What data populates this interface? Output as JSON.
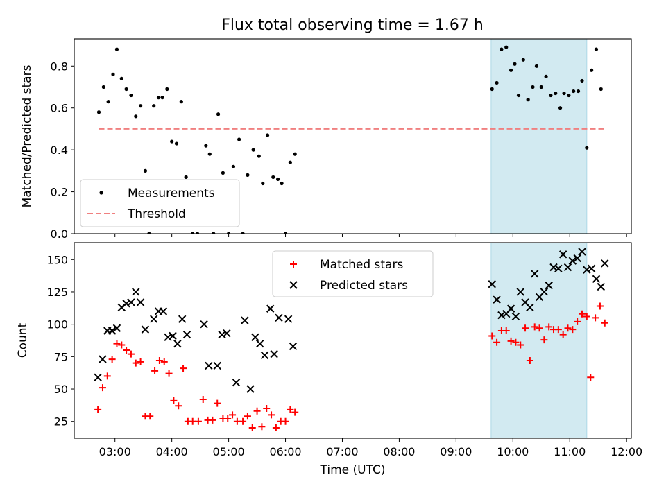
{
  "title": "Flux total observing time = 1.67 h",
  "colors": {
    "measurement": "#000000",
    "threshold": "#f08080",
    "matched": "#ff0000",
    "predicted": "#000000",
    "highlight": "#add8e6"
  },
  "chart_data": [
    {
      "type": "scatter",
      "name": "ratio-panel",
      "title": "Flux total observing time = 1.67 h",
      "xlabel": "",
      "ylabel": "Matched/Predicted stars",
      "xlim": [
        "02:17",
        "12:05"
      ],
      "ylim": [
        0,
        0.93
      ],
      "yticks": [
        0.0,
        0.2,
        0.4,
        0.6,
        0.8
      ],
      "ytick_labels": [
        "0.0",
        "0.2",
        "0.4",
        "0.6",
        "0.8"
      ],
      "highlight_span": [
        "09:37",
        "11:18"
      ],
      "legend": {
        "position": "lower-left",
        "entries": [
          "Measurements",
          "Threshold"
        ]
      },
      "threshold": {
        "name": "Threshold",
        "x": [
          "02:43",
          "11:38"
        ],
        "y": 0.5
      },
      "series": [
        {
          "name": "Measurements",
          "marker": "dot",
          "points": [
            [
              "02:43",
              0.58
            ],
            [
              "02:48",
              0.7
            ],
            [
              "02:53",
              0.63
            ],
            [
              "02:58",
              0.76
            ],
            [
              "03:02",
              0.88
            ],
            [
              "03:07",
              0.74
            ],
            [
              "03:12",
              0.69
            ],
            [
              "03:17",
              0.66
            ],
            [
              "03:22",
              0.56
            ],
            [
              "03:27",
              0.61
            ],
            [
              "03:32",
              0.3
            ],
            [
              "03:36",
              0.0
            ],
            [
              "03:41",
              0.61
            ],
            [
              "03:46",
              0.65
            ],
            [
              "03:50",
              0.65
            ],
            [
              "03:55",
              0.69
            ],
            [
              "04:00",
              0.44
            ],
            [
              "04:05",
              0.43
            ],
            [
              "04:10",
              0.63
            ],
            [
              "04:15",
              0.27
            ],
            [
              "04:22",
              0.0
            ],
            [
              "04:27",
              0.0
            ],
            [
              "04:36",
              0.42
            ],
            [
              "04:40",
              0.38
            ],
            [
              "04:44",
              0.0
            ],
            [
              "04:49",
              0.57
            ],
            [
              "04:54",
              0.29
            ],
            [
              "05:00",
              0.0
            ],
            [
              "05:05",
              0.32
            ],
            [
              "05:11",
              0.45
            ],
            [
              "05:15",
              0.0
            ],
            [
              "05:20",
              0.28
            ],
            [
              "05:26",
              0.4
            ],
            [
              "05:32",
              0.37
            ],
            [
              "05:36",
              0.24
            ],
            [
              "05:41",
              0.47
            ],
            [
              "05:47",
              0.27
            ],
            [
              "05:52",
              0.26
            ],
            [
              "05:56",
              0.24
            ],
            [
              "06:00",
              0.0
            ],
            [
              "06:05",
              0.34
            ],
            [
              "06:10",
              0.38
            ],
            [
              "09:38",
              0.69
            ],
            [
              "09:43",
              0.72
            ],
            [
              "09:48",
              0.88
            ],
            [
              "09:53",
              0.89
            ],
            [
              "09:58",
              0.78
            ],
            [
              "10:02",
              0.81
            ],
            [
              "10:06",
              0.66
            ],
            [
              "10:11",
              0.83
            ],
            [
              "10:16",
              0.64
            ],
            [
              "10:21",
              0.7
            ],
            [
              "10:25",
              0.8
            ],
            [
              "10:30",
              0.7
            ],
            [
              "10:35",
              0.75
            ],
            [
              "10:40",
              0.66
            ],
            [
              "10:45",
              0.67
            ],
            [
              "10:50",
              0.6
            ],
            [
              "10:54",
              0.67
            ],
            [
              "10:59",
              0.66
            ],
            [
              "11:04",
              0.68
            ],
            [
              "11:09",
              0.68
            ],
            [
              "11:13",
              0.73
            ],
            [
              "11:18",
              0.41
            ],
            [
              "11:23",
              0.78
            ],
            [
              "11:28",
              0.88
            ],
            [
              "11:33",
              0.69
            ]
          ]
        }
      ]
    },
    {
      "type": "scatter",
      "name": "count-panel",
      "xlabel": "Time (UTC)",
      "ylabel": "Count",
      "xlim": [
        "02:17",
        "12:05"
      ],
      "ylim": [
        12,
        163
      ],
      "yticks": [
        25,
        50,
        75,
        100,
        125,
        150
      ],
      "ytick_labels": [
        "25",
        "50",
        "75",
        "100",
        "125",
        "150"
      ],
      "xticks": [
        "03:00",
        "04:00",
        "05:00",
        "06:00",
        "07:00",
        "08:00",
        "09:00",
        "10:00",
        "11:00",
        "12:00"
      ],
      "xtick_labels": [
        "03:00",
        "04:00",
        "05:00",
        "06:00",
        "07:00",
        "08:00",
        "09:00",
        "10:00",
        "11:00",
        "12:00"
      ],
      "highlight_span": [
        "09:37",
        "11:18"
      ],
      "legend": {
        "position": "upper-center",
        "entries": [
          "Matched stars",
          "Predicted stars"
        ]
      },
      "series": [
        {
          "name": "Matched stars",
          "marker": "plus",
          "points": [
            [
              "02:42",
              34
            ],
            [
              "02:47",
              51
            ],
            [
              "02:52",
              60
            ],
            [
              "02:57",
              73
            ],
            [
              "03:02",
              85
            ],
            [
              "03:07",
              84
            ],
            [
              "03:12",
              80
            ],
            [
              "03:17",
              77
            ],
            [
              "03:22",
              70
            ],
            [
              "03:27",
              71
            ],
            [
              "03:32",
              29
            ],
            [
              "03:37",
              29
            ],
            [
              "03:42",
              64
            ],
            [
              "03:47",
              72
            ],
            [
              "03:52",
              71
            ],
            [
              "03:57",
              62
            ],
            [
              "04:02",
              41
            ],
            [
              "04:07",
              37
            ],
            [
              "04:12",
              66
            ],
            [
              "04:17",
              25
            ],
            [
              "04:22",
              25
            ],
            [
              "04:28",
              25
            ],
            [
              "04:33",
              42
            ],
            [
              "04:38",
              26
            ],
            [
              "04:43",
              26
            ],
            [
              "04:48",
              39
            ],
            [
              "04:54",
              27
            ],
            [
              "04:59",
              27
            ],
            [
              "05:04",
              30
            ],
            [
              "05:09",
              25
            ],
            [
              "05:15",
              25
            ],
            [
              "05:20",
              29
            ],
            [
              "05:25",
              20
            ],
            [
              "05:30",
              33
            ],
            [
              "05:35",
              21
            ],
            [
              "05:40",
              35
            ],
            [
              "05:45",
              30
            ],
            [
              "05:50",
              20
            ],
            [
              "05:55",
              25
            ],
            [
              "06:00",
              25
            ],
            [
              "06:05",
              34
            ],
            [
              "06:10",
              32
            ],
            [
              "09:38",
              91
            ],
            [
              "09:43",
              86
            ],
            [
              "09:48",
              95
            ],
            [
              "09:53",
              95
            ],
            [
              "09:58",
              87
            ],
            [
              "10:03",
              86
            ],
            [
              "10:08",
              84
            ],
            [
              "10:13",
              97
            ],
            [
              "10:18",
              72
            ],
            [
              "10:23",
              98
            ],
            [
              "10:28",
              97
            ],
            [
              "10:33",
              88
            ],
            [
              "10:38",
              98
            ],
            [
              "10:43",
              96
            ],
            [
              "10:48",
              96
            ],
            [
              "10:53",
              92
            ],
            [
              "10:58",
              97
            ],
            [
              "11:03",
              96
            ],
            [
              "11:08",
              102
            ],
            [
              "11:13",
              108
            ],
            [
              "11:18",
              106
            ],
            [
              "11:22",
              59
            ],
            [
              "11:27",
              105
            ],
            [
              "11:32",
              114
            ],
            [
              "11:37",
              101
            ]
          ]
        },
        {
          "name": "Predicted stars",
          "marker": "x",
          "points": [
            [
              "02:42",
              59
            ],
            [
              "02:47",
              73
            ],
            [
              "02:52",
              95
            ],
            [
              "02:57",
              95
            ],
            [
              "03:02",
              97
            ],
            [
              "03:07",
              113
            ],
            [
              "03:12",
              116
            ],
            [
              "03:17",
              117
            ],
            [
              "03:22",
              125
            ],
            [
              "03:27",
              117
            ],
            [
              "03:32",
              96
            ],
            [
              "03:41",
              104
            ],
            [
              "03:46",
              110
            ],
            [
              "03:51",
              110
            ],
            [
              "03:56",
              90
            ],
            [
              "04:01",
              91
            ],
            [
              "04:06",
              85
            ],
            [
              "04:11",
              104
            ],
            [
              "04:16",
              92
            ],
            [
              "04:34",
              100
            ],
            [
              "04:39",
              68
            ],
            [
              "04:48",
              68
            ],
            [
              "04:53",
              92
            ],
            [
              "04:58",
              93
            ],
            [
              "05:08",
              55
            ],
            [
              "05:17",
              103
            ],
            [
              "05:23",
              50
            ],
            [
              "05:28",
              90
            ],
            [
              "05:33",
              85
            ],
            [
              "05:38",
              76
            ],
            [
              "05:44",
              112
            ],
            [
              "05:48",
              77
            ],
            [
              "05:53",
              105
            ],
            [
              "06:03",
              104
            ],
            [
              "06:08",
              83
            ],
            [
              "09:38",
              131
            ],
            [
              "09:43",
              119
            ],
            [
              "09:48",
              107
            ],
            [
              "09:53",
              108
            ],
            [
              "09:58",
              112
            ],
            [
              "10:03",
              106
            ],
            [
              "10:08",
              125
            ],
            [
              "10:13",
              117
            ],
            [
              "10:18",
              113
            ],
            [
              "10:23",
              139
            ],
            [
              "10:28",
              121
            ],
            [
              "10:33",
              125
            ],
            [
              "10:38",
              130
            ],
            [
              "10:43",
              144
            ],
            [
              "10:48",
              143
            ],
            [
              "10:53",
              154
            ],
            [
              "10:58",
              144
            ],
            [
              "11:03",
              149
            ],
            [
              "11:08",
              151
            ],
            [
              "11:13",
              156
            ],
            [
              "11:18",
              142
            ],
            [
              "11:23",
              143
            ],
            [
              "11:28",
              135
            ],
            [
              "11:33",
              129
            ],
            [
              "11:37",
              147
            ]
          ]
        }
      ]
    }
  ]
}
